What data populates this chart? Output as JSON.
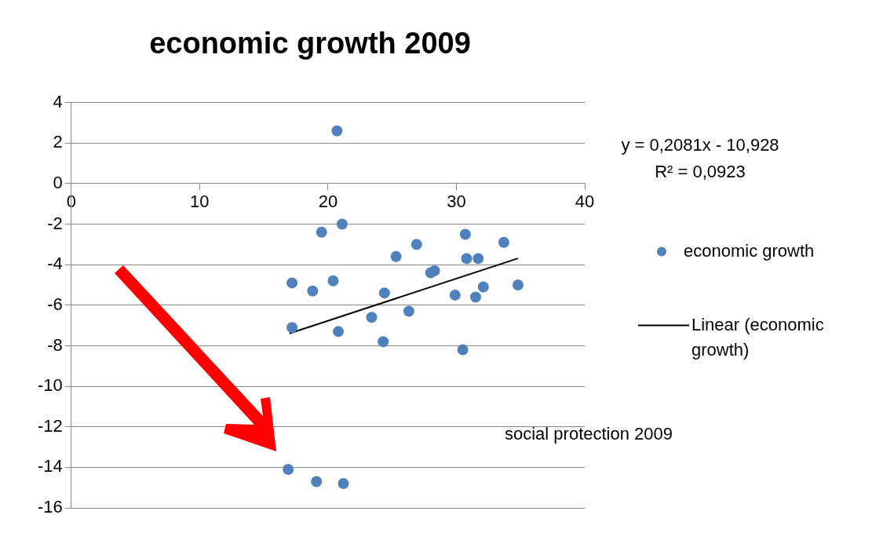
{
  "chart_data": {
    "type": "scatter",
    "title": "economic growth 2009",
    "xlabel": "social protection 2009",
    "xlim": [
      0,
      40
    ],
    "xticks": [
      0,
      10,
      20,
      30,
      40
    ],
    "ylim": [
      -16,
      4
    ],
    "yticks": [
      -16,
      -14,
      -12,
      -10,
      -8,
      -6,
      -4,
      -2,
      0,
      2,
      4
    ],
    "grid": "y",
    "legend": "right",
    "marker": "circle",
    "annotations": [
      "y = 0,2081x - 10,928",
      "R² = 0,0923"
    ],
    "series": [
      {
        "name": "economic growth",
        "color": "#4f81bd",
        "x": [
          20.7,
          19.5,
          21.1,
          17.2,
          18.8,
          20.4,
          17.2,
          20.8,
          24.3,
          23.4,
          24.4,
          25.3,
          26.9,
          26.3,
          28.0,
          28.3,
          29.9,
          30.7,
          30.8,
          31.7,
          31.5,
          32.1,
          33.7,
          34.8,
          30.5,
          16.9,
          19.1,
          21.2
        ],
        "values": [
          2.6,
          -2.4,
          -2.0,
          -4.9,
          -5.3,
          -4.8,
          -7.1,
          -7.3,
          -7.8,
          -6.6,
          -5.4,
          -3.6,
          -3.0,
          -6.3,
          -4.4,
          -4.3,
          -5.5,
          -2.5,
          -3.7,
          -3.7,
          -5.6,
          -5.1,
          -2.9,
          -5.0,
          -8.2,
          -14.1,
          -14.7,
          -14.8
        ]
      },
      {
        "name": "Linear (economic growth)",
        "type": "line",
        "color": "#000000",
        "marker": "none",
        "x": [
          17,
          34.8
        ],
        "values": [
          -7.39,
          -3.69
        ]
      }
    ]
  }
}
